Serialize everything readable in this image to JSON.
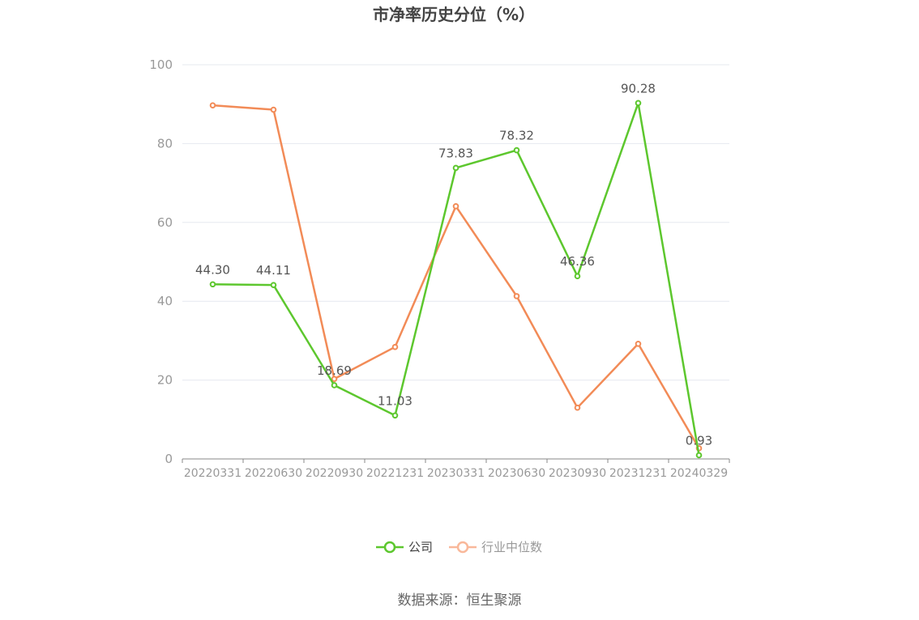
{
  "chart_data": {
    "type": "line",
    "title": "市净率历史分位（%）",
    "categories": [
      "20220331",
      "20220630",
      "20220930",
      "20221231",
      "20230331",
      "20230630",
      "20230930",
      "20231231",
      "20240329"
    ],
    "ylim": [
      0,
      100
    ],
    "y_ticks": [
      "0",
      "20",
      "40",
      "60",
      "80",
      "100"
    ],
    "grid": true,
    "legend_position": "bottom",
    "series": [
      {
        "name": "公司",
        "color": "#5dc72e",
        "values": [
          44.3,
          44.11,
          18.69,
          11.03,
          73.83,
          78.32,
          46.36,
          90.28,
          0.93
        ],
        "labels": [
          "44.30",
          "44.11",
          "18.69",
          "11.03",
          "73.83",
          "78.32",
          "46.36",
          "90.28",
          "0.93"
        ]
      },
      {
        "name": "行业中位数",
        "color": "#f28b57",
        "values": [
          89.7,
          88.6,
          20.3,
          28.4,
          64.1,
          41.3,
          13.0,
          29.2,
          2.7
        ]
      }
    ],
    "legend_colors": {
      "公司": "#5dc72e",
      "行业中位数": "#f9b89a"
    },
    "source": "数据来源：恒生聚源"
  }
}
